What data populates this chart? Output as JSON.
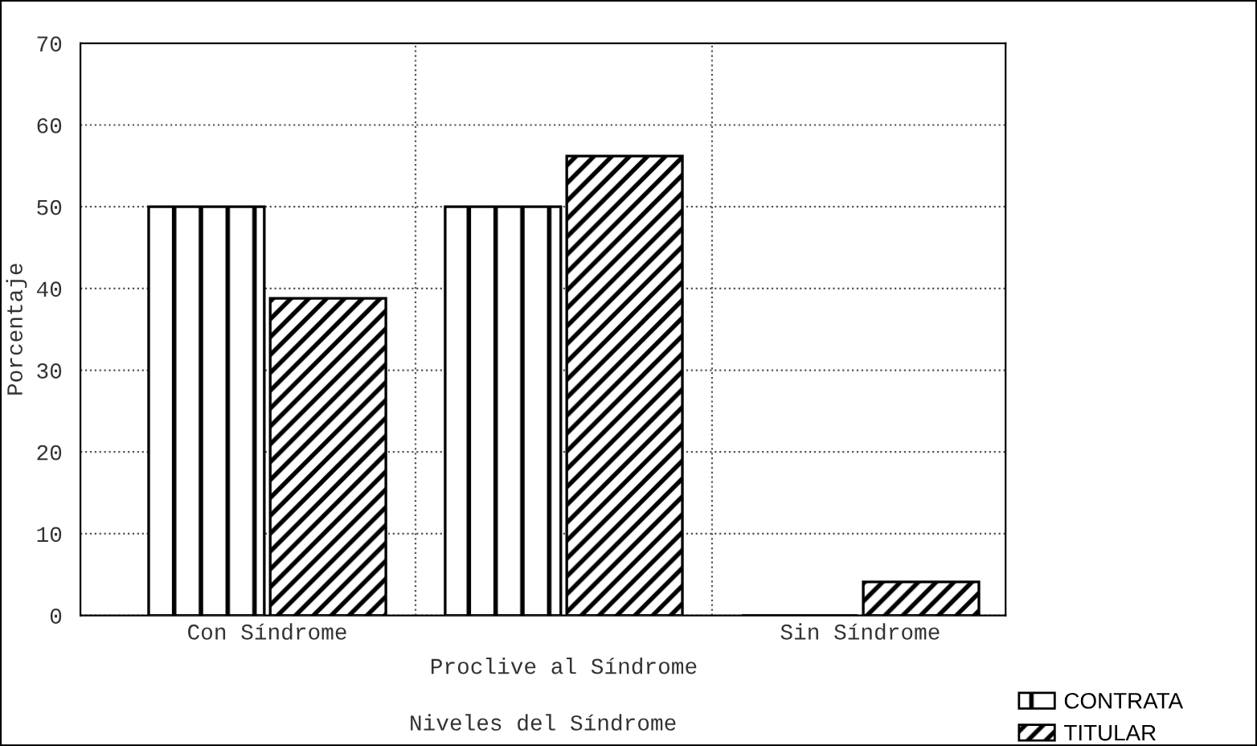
{
  "chart_data": {
    "type": "bar",
    "xlabel": "Niveles del Síndrome",
    "ylabel": "Porcentaje",
    "categories": [
      "Con Síndrome",
      "Proclive al Síndrome",
      "Sin Síndrome"
    ],
    "series": [
      {
        "name": "CONTRATA",
        "color": "#000000",
        "values": [
          50,
          50,
          0
        ]
      },
      {
        "name": "TITULAR",
        "color": "#000000",
        "values": [
          38.8,
          56.2,
          4.1
        ]
      }
    ],
    "ylim": [
      0,
      70
    ],
    "yticks": [
      0,
      10,
      20,
      30,
      40,
      50,
      60,
      70
    ],
    "grid": true,
    "legend": "bottom right"
  }
}
